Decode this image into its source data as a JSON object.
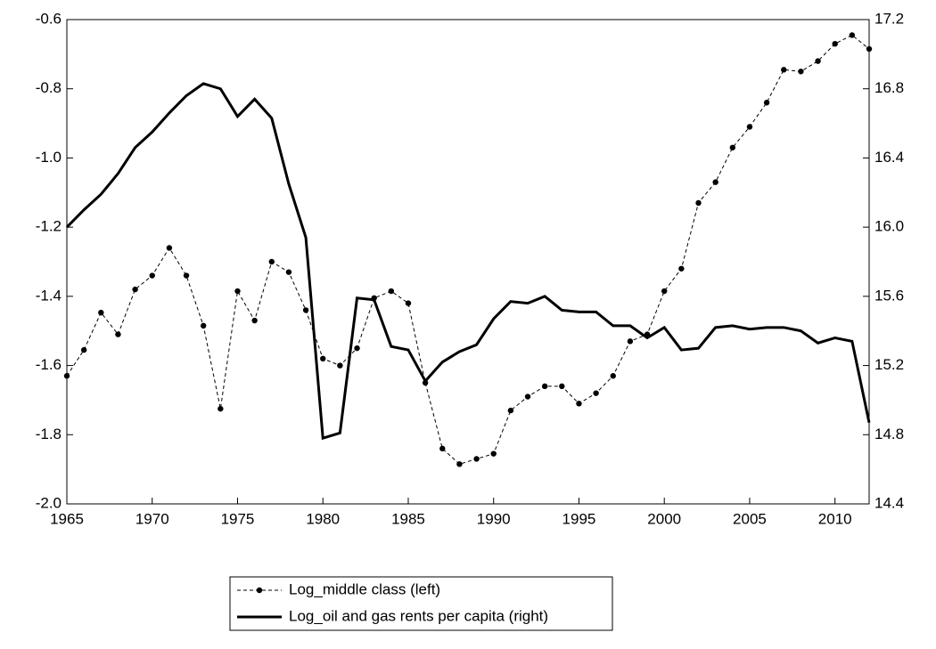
{
  "chart_data": {
    "type": "line",
    "x": [
      1965,
      1966,
      1967,
      1968,
      1969,
      1970,
      1971,
      1972,
      1973,
      1974,
      1975,
      1976,
      1977,
      1978,
      1979,
      1980,
      1981,
      1982,
      1983,
      1984,
      1985,
      1986,
      1987,
      1988,
      1989,
      1990,
      1991,
      1992,
      1993,
      1994,
      1995,
      1996,
      1997,
      1998,
      1999,
      2000,
      2001,
      2002,
      2003,
      2004,
      2005,
      2006,
      2007,
      2008,
      2009,
      2010,
      2011,
      2012
    ],
    "series": [
      {
        "name": "Log_middle class (left)",
        "color": "#000000",
        "style": "dashed",
        "marker": "circle",
        "values": [
          -1.63,
          -1.555,
          -1.447,
          -1.51,
          -1.38,
          -1.34,
          -1.26,
          -1.34,
          -1.485,
          -1.725,
          -1.385,
          -1.47,
          -1.3,
          -1.33,
          -1.44,
          -1.58,
          -1.6,
          -1.55,
          -1.405,
          -1.385,
          -1.42,
          -1.65,
          -1.84,
          -1.885,
          -1.87,
          -1.855,
          -1.73,
          -1.69,
          -1.66,
          -1.66,
          -1.71,
          -1.68,
          -1.63,
          -1.53,
          -1.51,
          -1.385,
          -1.32,
          -1.13,
          -1.07,
          -0.97,
          -0.91,
          -0.84,
          -0.745,
          -0.75,
          -0.72,
          -0.67,
          -0.645,
          -0.685
        ]
      },
      {
        "name": "Log_oil and gas rents per capita (right)",
        "color": "#000000",
        "style": "solid",
        "axis": "y2",
        "values": [
          16.0,
          16.1,
          16.19,
          16.31,
          16.46,
          16.55,
          16.66,
          16.76,
          16.83,
          16.8,
          16.64,
          16.74,
          16.63,
          16.25,
          15.94,
          14.78,
          14.81,
          15.59,
          15.58,
          15.31,
          15.29,
          15.11,
          15.22,
          15.28,
          15.32,
          15.47,
          15.57,
          15.56,
          15.6,
          15.52,
          15.51,
          15.51,
          15.43,
          15.43,
          15.36,
          15.42,
          15.29,
          15.3,
          15.42,
          15.43,
          15.41,
          15.42,
          15.42,
          15.4,
          15.33,
          15.36,
          15.34,
          14.87
        ]
      }
    ],
    "xlim": [
      1965,
      2012
    ],
    "xticks": [
      1965,
      1970,
      1975,
      1980,
      1985,
      1990,
      1995,
      2000,
      2005,
      2010
    ],
    "ylim": [
      -2.0,
      -0.6
    ],
    "yticks": [
      {
        "value": -2.0,
        "label": "-2.0"
      },
      -1.8,
      -1.6,
      -1.4,
      -1.2,
      {
        "value": -1.0,
        "label": "-1.0"
      },
      -0.8,
      -0.6
    ],
    "y2lim": [
      14.4,
      17.2
    ],
    "y2ticks": [
      14.4,
      14.8,
      15.2,
      15.6,
      {
        "value": 16.0,
        "label": "16.0"
      },
      16.4,
      16.8,
      17.2
    ],
    "legend": "bottom",
    "grid": false
  }
}
